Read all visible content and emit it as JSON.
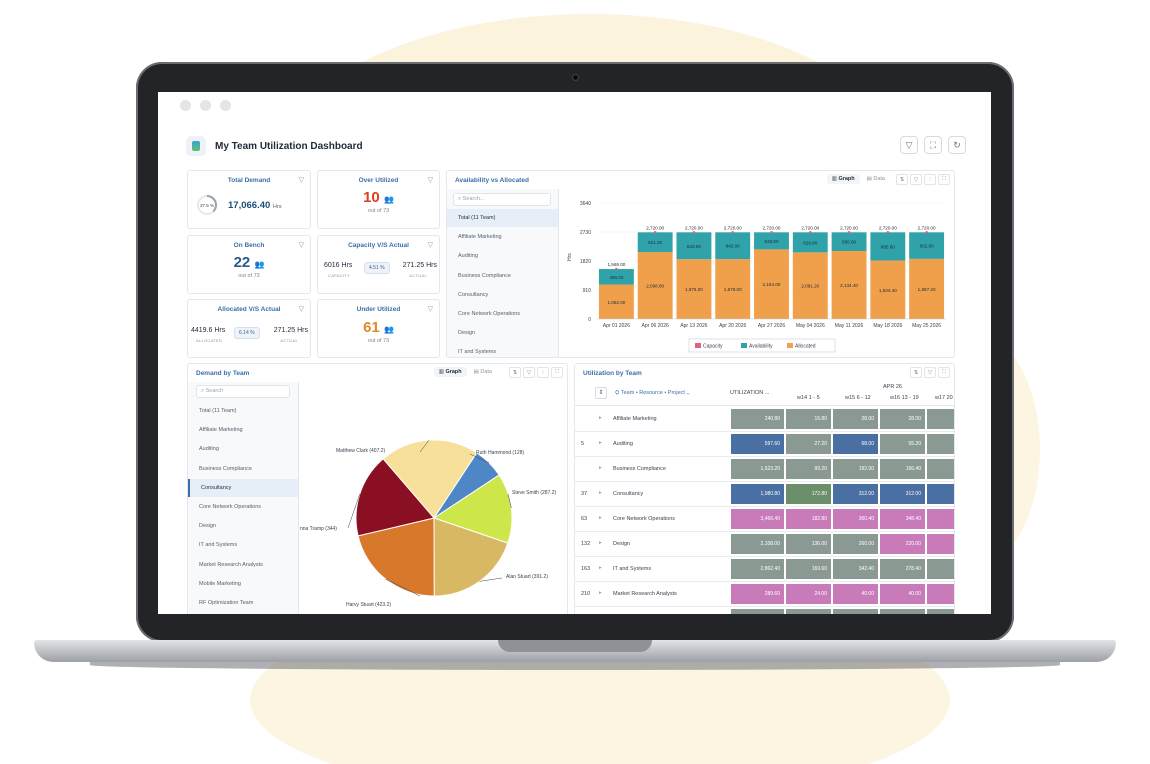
{
  "app": {
    "title": "My Team Utilization Dashboard",
    "icons": [
      "filter-icon",
      "expand-icon",
      "refresh-icon"
    ]
  },
  "kpis": {
    "total_demand": {
      "title": "Total Demand",
      "value": "17,066.40",
      "unit": "Hrs",
      "ring_pct": "37.5 %"
    },
    "over_utilized": {
      "title": "Over Utilized",
      "value": "10",
      "sub": "out of 73"
    },
    "on_bench": {
      "title": "On Bench",
      "value": "22",
      "sub": "out of 73"
    },
    "capacity_vs_actual": {
      "title": "Capacity V/S Actual",
      "left": "6016 Hrs",
      "left_label": "CAPACITY",
      "pill": "4.51 %",
      "right": "271.25 Hrs",
      "right_label": "ACTUAL"
    },
    "allocated_vs_actual": {
      "title": "Allocated V/S Actual",
      "left": "4419.6 Hrs",
      "left_label": "ALLOCATED",
      "pill": "6.14 %",
      "right": "271.25 Hrs",
      "right_label": "ACTUAL"
    },
    "under_utilized": {
      "title": "Under Utilized",
      "value": "61",
      "sub": "out of 73"
    }
  },
  "availability": {
    "title": "Availability vs Allocated",
    "tabs": {
      "graph": "Graph",
      "data": "Data"
    },
    "search_placeholder": "Search...",
    "list": [
      "Total (11 Team)",
      "Affiliate Marketing",
      "Auditing",
      "Business Compliance",
      "Consultancy",
      "Core Network Operations",
      "Design",
      "IT and Systems"
    ]
  },
  "chart_data": {
    "type": "bar",
    "ylabel": "Hrs",
    "yticks": [
      "0",
      "910",
      "1820",
      "2730",
      "3640"
    ],
    "ylim": [
      0,
      3640
    ],
    "categories": [
      "Apr 01 2026",
      "Apr 06 2026",
      "Apr 13 2026",
      "Apr 20 2026",
      "Apr 27 2026",
      "May 04 2026",
      "May 11 2026",
      "May 18 2026",
      "May 25 2026"
    ],
    "series": [
      {
        "name": "Allocated",
        "color": "#f0a04b",
        "values": [
          1082,
          2098.8,
          1876,
          1878,
          2184,
          2091.2,
          2134.4,
          1834.4,
          1887.2
        ],
        "labels": [
          "1,082.00",
          "2,098.80",
          "1,876.00",
          "1,878.00",
          "2,184.00",
          "2,091.20",
          "2,134.40",
          "1,834.40",
          "1,887.20"
        ]
      },
      {
        "name": "Availability",
        "color": "#2fa3a9",
        "values": [
          486,
          621.2,
          843.6,
          842,
          536,
          628.8,
          585.6,
          885.6,
          832.8
        ],
        "labels": [
          "486.00",
          "621.20",
          "843.60",
          "842.00",
          "536.00",
          "628.80",
          "585.60",
          "885.60",
          "832.80"
        ]
      },
      {
        "name": "Capacity",
        "color": "#e0637d",
        "values": [
          1568,
          2720,
          2720,
          2720,
          2720,
          2720,
          2720,
          2720,
          2720
        ],
        "labels": [
          "1,568.00",
          "2,720.00",
          "2,720.00",
          "2,720.00",
          "2,720.00",
          "2,720.00",
          "2,720.00",
          "2,720.00",
          "2,720.00"
        ]
      }
    ],
    "legend": [
      "Capacity",
      "Availability",
      "Allocated"
    ],
    "legend_position": "bottom"
  },
  "demand": {
    "title": "Demand by Team",
    "tabs": {
      "graph": "Graph",
      "data": "Data"
    },
    "search_placeholder": "Search",
    "list": [
      "Total (11 Team)",
      "Affiliate Marketing",
      "Auditing",
      "Business Compliance",
      "Consultancy",
      "Core Network Operations",
      "Design",
      "IT and Systems",
      "Market Research Analysts",
      "Mobile Marketing",
      "RF Optimization Team"
    ],
    "pie": [
      {
        "label": "Matthew Clark (407.2)",
        "value": 407.2,
        "color": "#f7e09a"
      },
      {
        "label": "Ruth Hammond (128)",
        "value": 128,
        "color": "#4f86c6"
      },
      {
        "label": "Steve Smith (287.2)",
        "value": 287.2,
        "color": "#cde64a"
      },
      {
        "label": "Alan Stuart (391.2)",
        "value": 391.2,
        "color": "#d8b863"
      },
      {
        "label": "Harvy Stuart (423.2)",
        "value": 423.2,
        "color": "#d8782a"
      },
      {
        "label": "nna Tramp (344)",
        "value": 344,
        "color": "#8b0f22"
      }
    ]
  },
  "utilization": {
    "title": "Utilization by Team",
    "group_label": "Team • Resource • Project",
    "util_col": "UTILIZATION ...",
    "month": "APR 26",
    "weeks": [
      "w14 1 - 5",
      "w15 6 - 12",
      "w16 13 - 19",
      "w17 20"
    ],
    "rows": [
      {
        "num": "",
        "name": "Affiliate Marketing",
        "util": "240.80",
        "w": [
          "16.80",
          "28.00",
          "28.00"
        ],
        "colors": [
          "#8a9a93",
          "#8a9a93",
          "#8a9a93",
          "#8a9a93"
        ]
      },
      {
        "num": "5",
        "name": "Auditing",
        "util": "597.60",
        "w": [
          "27.20",
          "68.00",
          "55.20"
        ],
        "colors": [
          "#4a6fa3",
          "#8a9a93",
          "#4a6fa3",
          "#8a9a93"
        ]
      },
      {
        "num": "",
        "name": "Business Compliance",
        "util": "1,623.20",
        "w": [
          "99.20",
          "192.00",
          "166.40"
        ],
        "colors": [
          "#8a9a93",
          "#8a9a93",
          "#8a9a93",
          "#8a9a93"
        ]
      },
      {
        "num": "37",
        "name": "Consultancy",
        "util": "1,980.80",
        "w": [
          "172.80",
          "312.00",
          "312.00"
        ],
        "colors": [
          "#4a6fa3",
          "#6b8f6b",
          "#4a6fa3",
          "#4a6fa3"
        ]
      },
      {
        "num": "63",
        "name": "Core Network Operations",
        "util": "3,466.40",
        "w": [
          "182.80",
          "360.40",
          "348.40"
        ],
        "colors": [
          "#c87bb8",
          "#c87bb8",
          "#c87bb8",
          "#c87bb8"
        ]
      },
      {
        "num": "132",
        "name": "Design",
        "util": "2,108.00",
        "w": [
          "136.00",
          "260.00",
          "220.00"
        ],
        "colors": [
          "#8a9a93",
          "#8a9a93",
          "#8a9a93",
          "#c87bb8"
        ]
      },
      {
        "num": "163",
        "name": "IT and Systems",
        "util": "2,862.40",
        "w": [
          "169.60",
          "342.40",
          "278.40"
        ],
        "colors": [
          "#8a9a93",
          "#8a9a93",
          "#8a9a93",
          "#8a9a93"
        ]
      },
      {
        "num": "210",
        "name": "Market Research Analysts",
        "util": "289.60",
        "w": [
          "24.00",
          "40.00",
          "40.00"
        ],
        "colors": [
          "#c87bb8",
          "#c87bb8",
          "#c87bb8",
          "#c87bb8"
        ]
      },
      {
        "num": "",
        "name": "",
        "util": "788.00",
        "w": [
          "68.80",
          "108.00",
          "108.00"
        ],
        "colors": [
          "#8a9a93",
          "#8a9a93",
          "#8a9a93",
          "#8a9a93"
        ]
      }
    ]
  }
}
